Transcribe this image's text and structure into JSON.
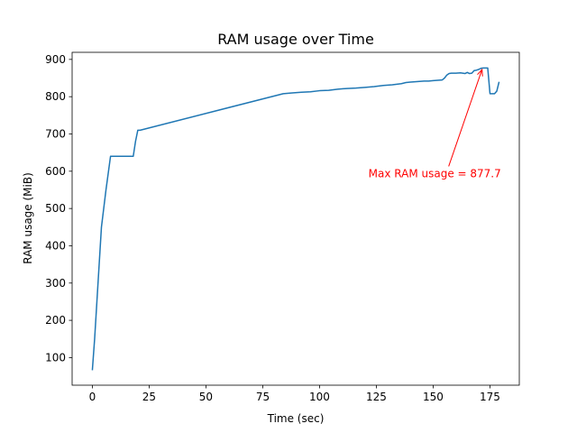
{
  "chart_data": {
    "type": "line",
    "title": "RAM usage over Time",
    "xlabel": "Time (sec)",
    "ylabel": "RAM usage (MiB)",
    "xlim": [
      -8.9,
      187.9
    ],
    "ylim": [
      26,
      919
    ],
    "xticks": [
      0,
      25,
      50,
      75,
      100,
      125,
      150,
      175
    ],
    "yticks": [
      100,
      200,
      300,
      400,
      500,
      600,
      700,
      800,
      900
    ],
    "grid": false,
    "line_color": "#1f77b4",
    "series": [
      {
        "x": [
          0,
          1,
          2,
          4,
          6,
          8,
          10,
          12,
          14,
          16,
          18,
          19,
          20,
          21,
          84,
          88,
          92,
          96,
          100,
          104,
          108,
          112,
          116,
          120,
          124,
          128,
          132,
          136,
          138,
          140,
          142,
          144,
          146,
          148,
          150,
          152,
          154,
          155,
          156,
          157,
          158,
          160,
          162,
          164,
          165,
          166,
          167,
          168,
          169,
          170,
          171,
          172,
          173,
          174,
          175,
          176,
          177,
          178,
          179
        ],
        "y": [
          66,
          150,
          250,
          450,
          550,
          640,
          640,
          640,
          640,
          640,
          640,
          680,
          710,
          710,
          808,
          810,
          812,
          813,
          816,
          817,
          820,
          822,
          823,
          825,
          827,
          830,
          832,
          835,
          838,
          839,
          840,
          841,
          842,
          842,
          843,
          844,
          845,
          850,
          858,
          862,
          863,
          863,
          864,
          862,
          865,
          862,
          863,
          870,
          871,
          873,
          876,
          877,
          877,
          877,
          808,
          808,
          808,
          815,
          840
        ]
      }
    ],
    "annotation": {
      "text": "Max RAM usage = 877.7",
      "color": "#ff0000",
      "point": [
        171.5,
        877.7
      ],
      "text_anchor_point": [
        121.5,
        584
      ]
    }
  }
}
